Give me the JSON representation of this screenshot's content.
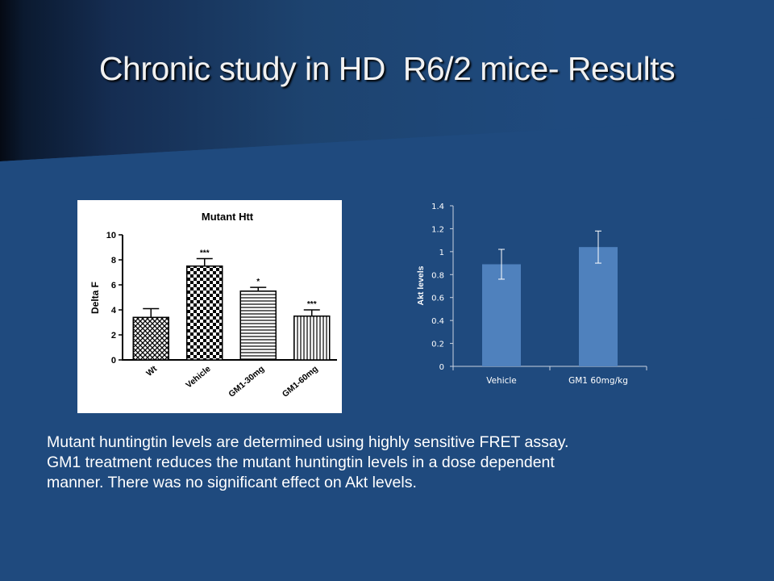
{
  "slide": {
    "title": "Chronic study in HD  R6/2 mice- Results",
    "caption_lines": [
      "Mutant huntingtin levels are determined using highly sensitive FRET assay.",
      "GM1 treatment reduces the mutant huntingtin levels in a dose dependent",
      "manner. There was no significant effect on Akt levels."
    ]
  },
  "chart_data": [
    {
      "type": "bar",
      "title": "Mutant Htt",
      "xlabel": "",
      "ylabel": "Delta F",
      "categories": [
        "Wt",
        "Vehicle",
        "GM1-30mg",
        "GM1-60mg"
      ],
      "values": [
        3.4,
        7.5,
        5.5,
        3.5
      ],
      "errors": [
        0.7,
        0.6,
        0.3,
        0.5
      ],
      "annotations": [
        "",
        "***",
        "*",
        "***"
      ],
      "patterns": [
        "crosshatch",
        "checker",
        "horizontal-lines",
        "vertical-lines"
      ],
      "ylim": [
        0,
        10
      ],
      "yticks": [
        0,
        2,
        4,
        6,
        8,
        10
      ],
      "grid": false,
      "legend": "none"
    },
    {
      "type": "bar",
      "title": "",
      "xlabel": "",
      "ylabel": "Akt levels",
      "categories": [
        "Vehicle",
        "GM1 60mg/kg"
      ],
      "values": [
        0.89,
        1.04
      ],
      "errors": [
        0.13,
        0.14
      ],
      "color": "#4f81bd",
      "ylim": [
        0,
        1.4
      ],
      "yticks": [
        "0",
        "0.2",
        "0.4",
        "0.6",
        "0.8",
        "1",
        "1.2",
        "1.4"
      ],
      "grid": false,
      "legend": "none"
    }
  ]
}
